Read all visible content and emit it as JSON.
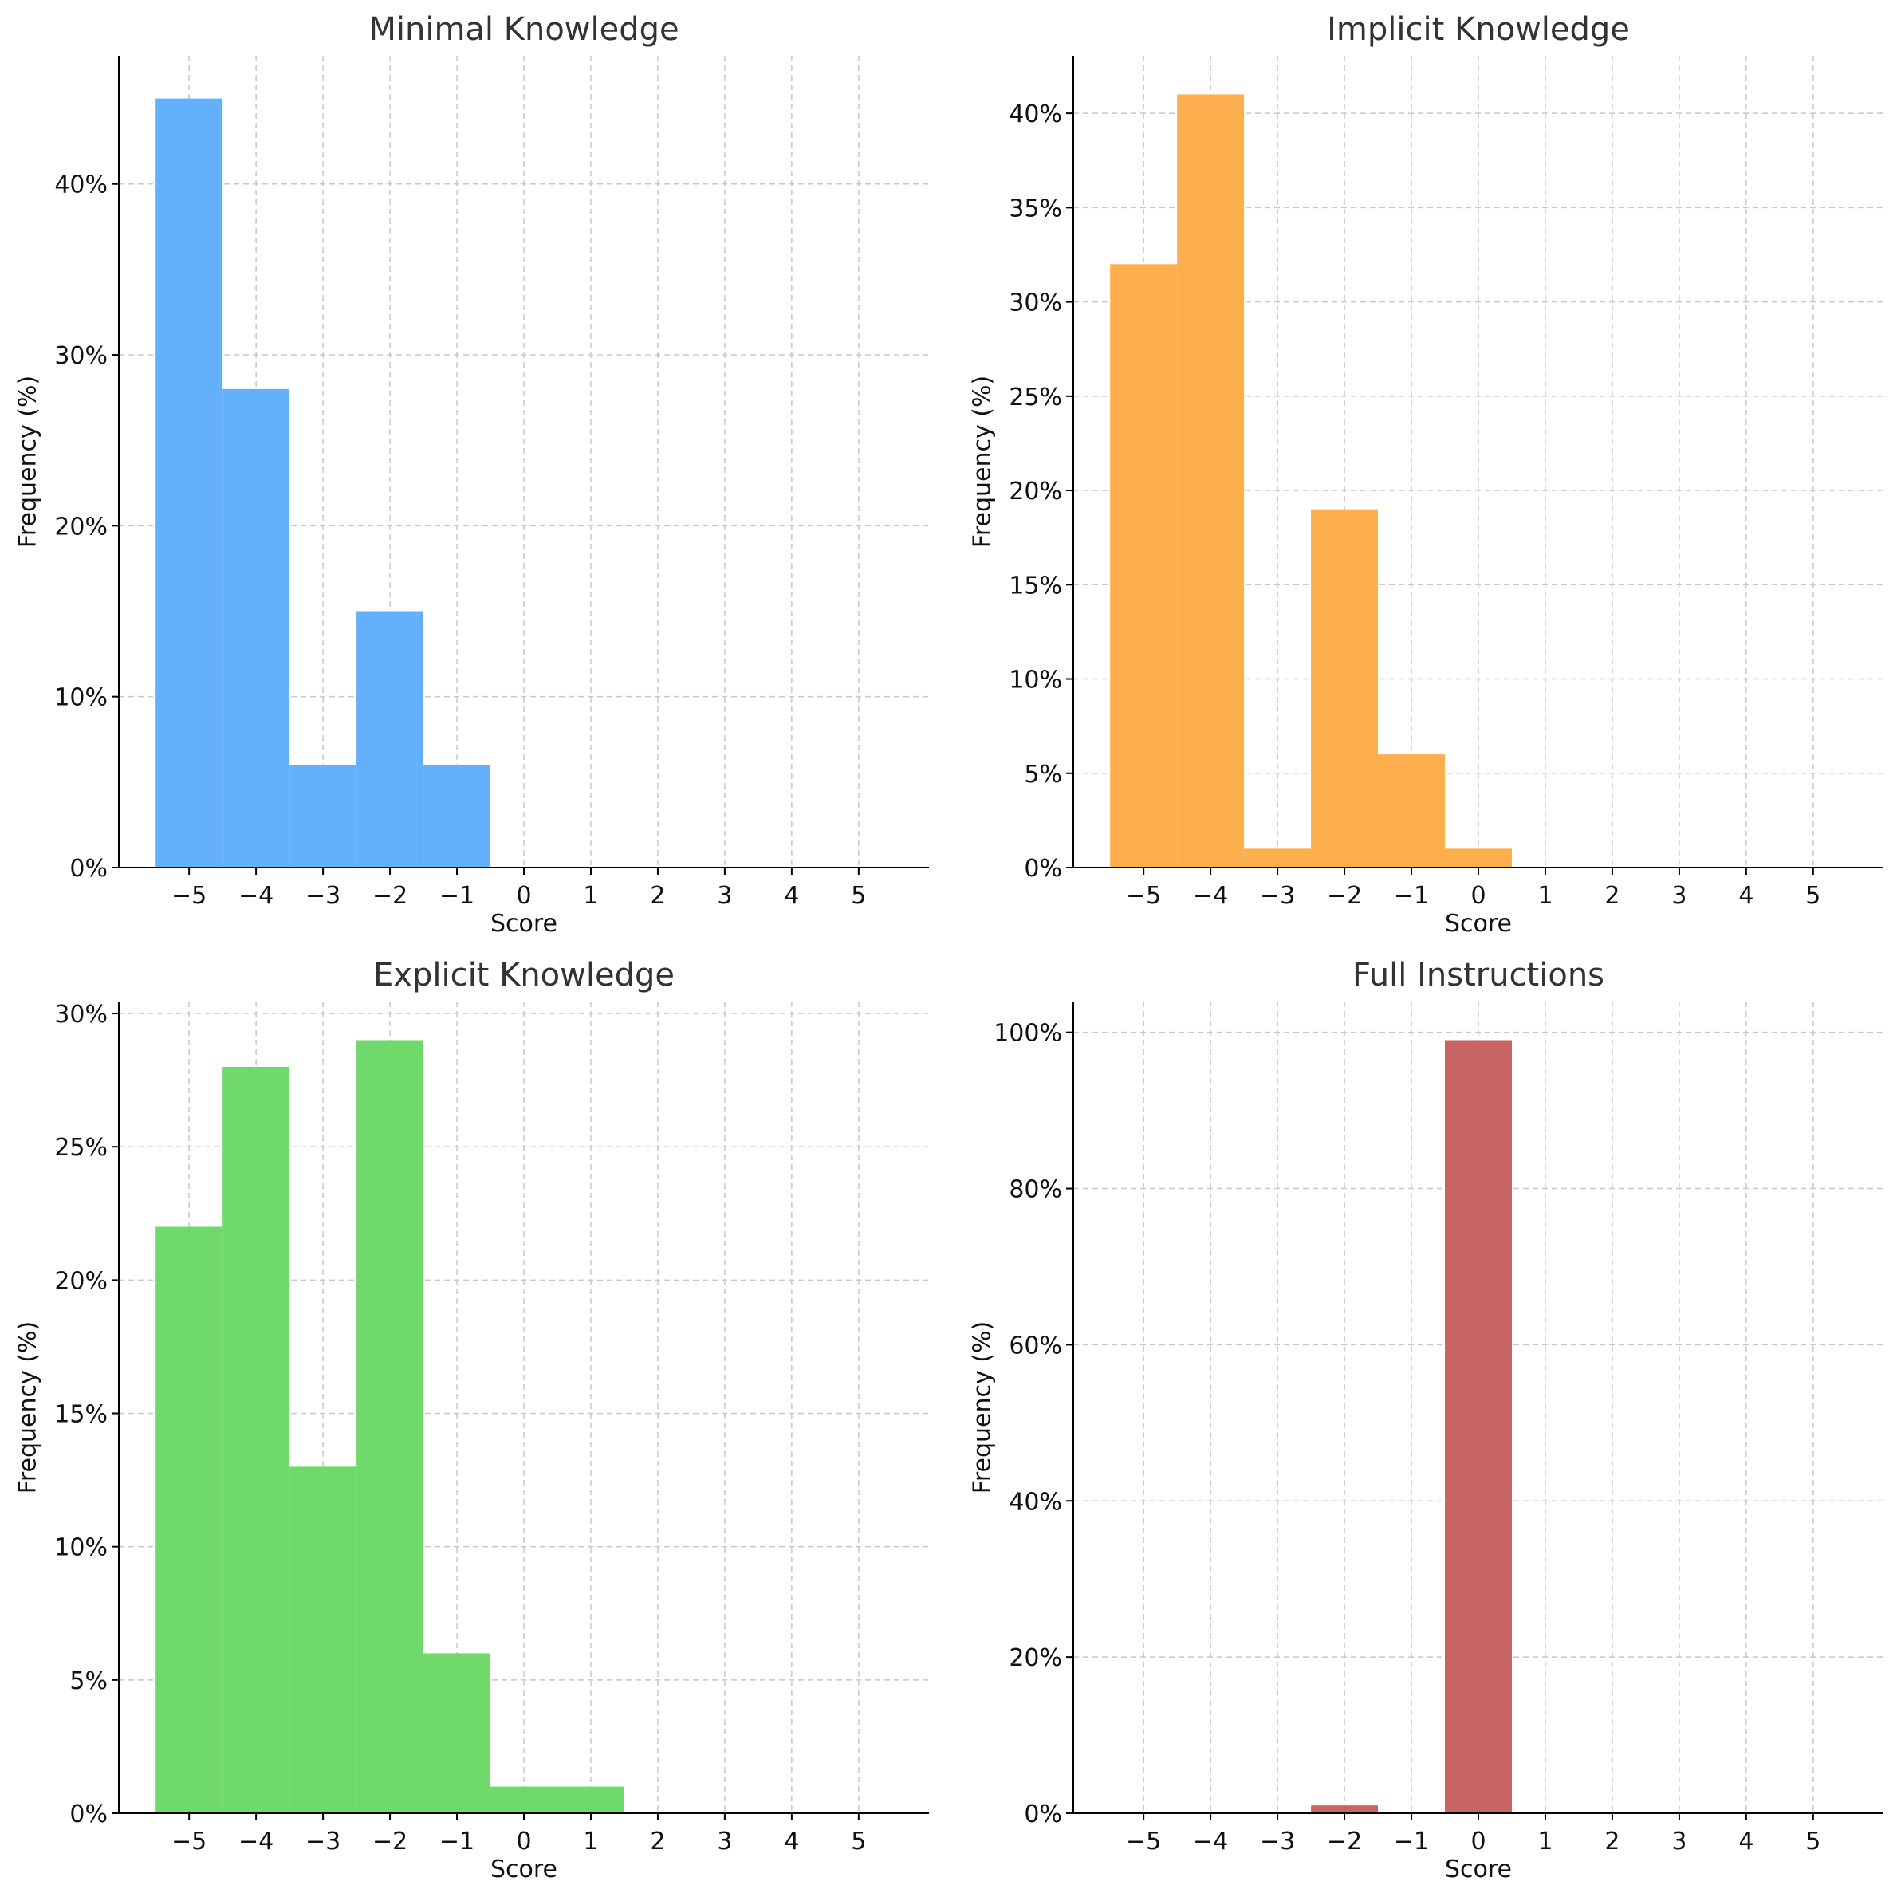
{
  "chart_data": [
    {
      "type": "bar",
      "title": "Minimal Knowledge",
      "xlabel": "Score",
      "ylabel": "Frequency (%)",
      "color": "#64b0fc",
      "x_ticks": [
        -5,
        -4,
        -3,
        -2,
        -1,
        0,
        1,
        2,
        3,
        4,
        5
      ],
      "x_tick_labels": [
        "−5",
        "−4",
        "−3",
        "−2",
        "−1",
        "0",
        "1",
        "2",
        "3",
        "4",
        "5"
      ],
      "xlim": [
        -6.05,
        6.05
      ],
      "ylim": [
        0,
        47.5
      ],
      "y_ticks": [
        0,
        10,
        20,
        30,
        40
      ],
      "y_tick_labels": [
        "0%",
        "10%",
        "20%",
        "30%",
        "40%"
      ],
      "categories": [
        -5,
        -4,
        -3,
        -2,
        -1
      ],
      "values": [
        45,
        28,
        6,
        15,
        6
      ],
      "grid": true
    },
    {
      "type": "bar",
      "title": "Implicit Knowledge",
      "xlabel": "Score",
      "ylabel": "Frequency (%)",
      "color": "#fdae4d",
      "x_ticks": [
        -5,
        -4,
        -3,
        -2,
        -1,
        0,
        1,
        2,
        3,
        4,
        5
      ],
      "x_tick_labels": [
        "−5",
        "−4",
        "−3",
        "−2",
        "−1",
        "0",
        "1",
        "2",
        "3",
        "4",
        "5"
      ],
      "xlim": [
        -6.05,
        6.05
      ],
      "ylim": [
        0,
        43.05
      ],
      "y_ticks": [
        0,
        5,
        10,
        15,
        20,
        25,
        30,
        35,
        40
      ],
      "y_tick_labels": [
        "0%",
        "5%",
        "10%",
        "15%",
        "20%",
        "25%",
        "30%",
        "35%",
        "40%"
      ],
      "categories": [
        -5,
        -4,
        -3,
        -2,
        -1,
        0
      ],
      "values": [
        32,
        41,
        1,
        19,
        6,
        1
      ],
      "grid": true
    },
    {
      "type": "bar",
      "title": "Explicit Knowledge",
      "xlabel": "Score",
      "ylabel": "Frequency (%)",
      "color": "#70d96c",
      "x_ticks": [
        -5,
        -4,
        -3,
        -2,
        -1,
        0,
        1,
        2,
        3,
        4,
        5
      ],
      "x_tick_labels": [
        "−5",
        "−4",
        "−3",
        "−2",
        "−1",
        "0",
        "1",
        "2",
        "3",
        "4",
        "5"
      ],
      "xlim": [
        -6.05,
        6.05
      ],
      "ylim": [
        0,
        30.45
      ],
      "y_ticks": [
        0,
        5,
        10,
        15,
        20,
        25,
        30
      ],
      "y_tick_labels": [
        "0%",
        "5%",
        "10%",
        "15%",
        "20%",
        "25%",
        "30%"
      ],
      "categories": [
        -5,
        -4,
        -3,
        -2,
        -1,
        0,
        1
      ],
      "values": [
        22,
        28,
        13,
        29,
        6,
        1,
        1
      ],
      "grid": true
    },
    {
      "type": "bar",
      "title": "Full Instructions",
      "xlabel": "Score",
      "ylabel": "Frequency (%)",
      "color": "#c86464",
      "x_ticks": [
        -5,
        -4,
        -3,
        -2,
        -1,
        0,
        1,
        2,
        3,
        4,
        5
      ],
      "x_tick_labels": [
        "−5",
        "−4",
        "−3",
        "−2",
        "−1",
        "0",
        "1",
        "2",
        "3",
        "4",
        "5"
      ],
      "xlim": [
        -6.05,
        6.05
      ],
      "ylim": [
        0,
        103.95
      ],
      "y_ticks": [
        0,
        20,
        40,
        60,
        80,
        100
      ],
      "y_tick_labels": [
        "0%",
        "20%",
        "40%",
        "60%",
        "80%",
        "100%"
      ],
      "categories": [
        -2,
        0
      ],
      "values": [
        1,
        99
      ],
      "grid": true
    }
  ]
}
